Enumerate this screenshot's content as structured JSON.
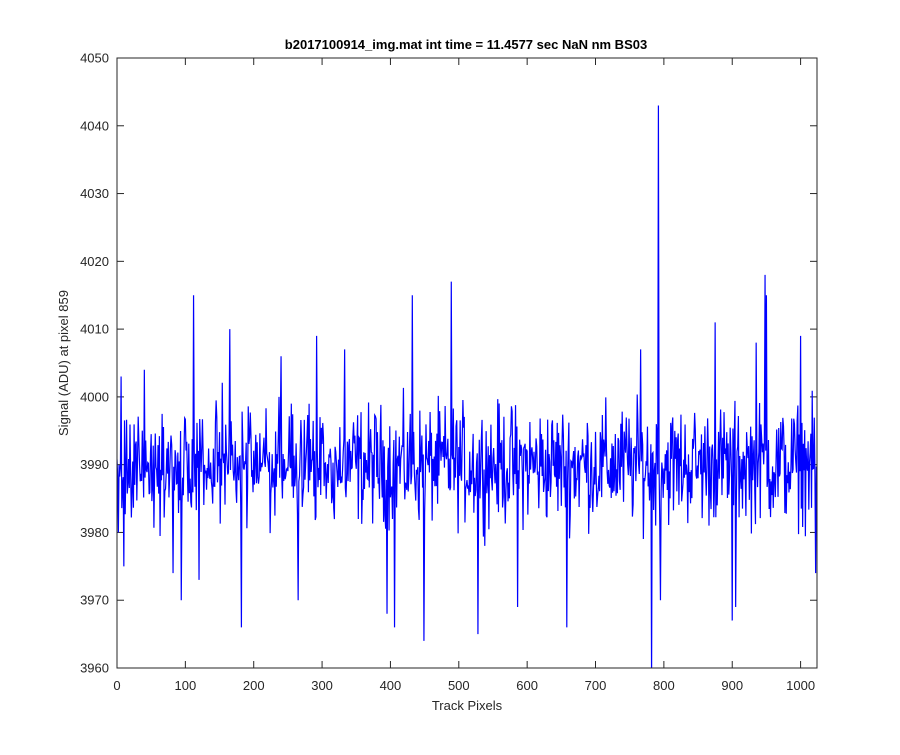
{
  "chart_data": {
    "type": "line",
    "title": "b2017100914_img.mat int time = 11.4577 sec  NaN nm BS03",
    "xlabel": "Track Pixels",
    "ylabel": "Signal (ADU) at pixel 859",
    "xlim": [
      0,
      1024
    ],
    "ylim": [
      3960,
      4050
    ],
    "xticks": [
      0,
      100,
      200,
      300,
      400,
      500,
      600,
      700,
      800,
      900,
      1000
    ],
    "yticks": [
      3960,
      3970,
      3980,
      3990,
      4000,
      4010,
      4020,
      4030,
      4040,
      4050
    ],
    "grid": false,
    "line_color": "#0000ff",
    "series": [
      {
        "n_points": 1024,
        "baseline": 3990,
        "noise_half_range": 11,
        "mean_approx": 3990,
        "notable_points": [
          {
            "x": 2,
            "y": 3980
          },
          {
            "x": 6,
            "y": 4003
          },
          {
            "x": 10,
            "y": 3975
          },
          {
            "x": 40,
            "y": 4004
          },
          {
            "x": 82,
            "y": 3974
          },
          {
            "x": 94,
            "y": 3970
          },
          {
            "x": 112,
            "y": 4015
          },
          {
            "x": 120,
            "y": 3973
          },
          {
            "x": 165,
            "y": 4010
          },
          {
            "x": 182,
            "y": 3966
          },
          {
            "x": 240,
            "y": 4006
          },
          {
            "x": 265,
            "y": 3970
          },
          {
            "x": 292,
            "y": 4009
          },
          {
            "x": 333,
            "y": 4007
          },
          {
            "x": 395,
            "y": 3968
          },
          {
            "x": 406,
            "y": 3966
          },
          {
            "x": 432,
            "y": 4015
          },
          {
            "x": 449,
            "y": 3964
          },
          {
            "x": 489,
            "y": 4017
          },
          {
            "x": 528,
            "y": 3965
          },
          {
            "x": 586,
            "y": 3969
          },
          {
            "x": 658,
            "y": 3966
          },
          {
            "x": 766,
            "y": 4007
          },
          {
            "x": 782,
            "y": 3958
          },
          {
            "x": 792,
            "y": 4043
          },
          {
            "x": 795,
            "y": 3970
          },
          {
            "x": 875,
            "y": 4011
          },
          {
            "x": 900,
            "y": 3967
          },
          {
            "x": 905,
            "y": 3969
          },
          {
            "x": 935,
            "y": 4008
          },
          {
            "x": 948,
            "y": 4018
          },
          {
            "x": 950,
            "y": 4015
          },
          {
            "x": 1000,
            "y": 4009
          },
          {
            "x": 1022,
            "y": 3974
          }
        ]
      }
    ]
  }
}
